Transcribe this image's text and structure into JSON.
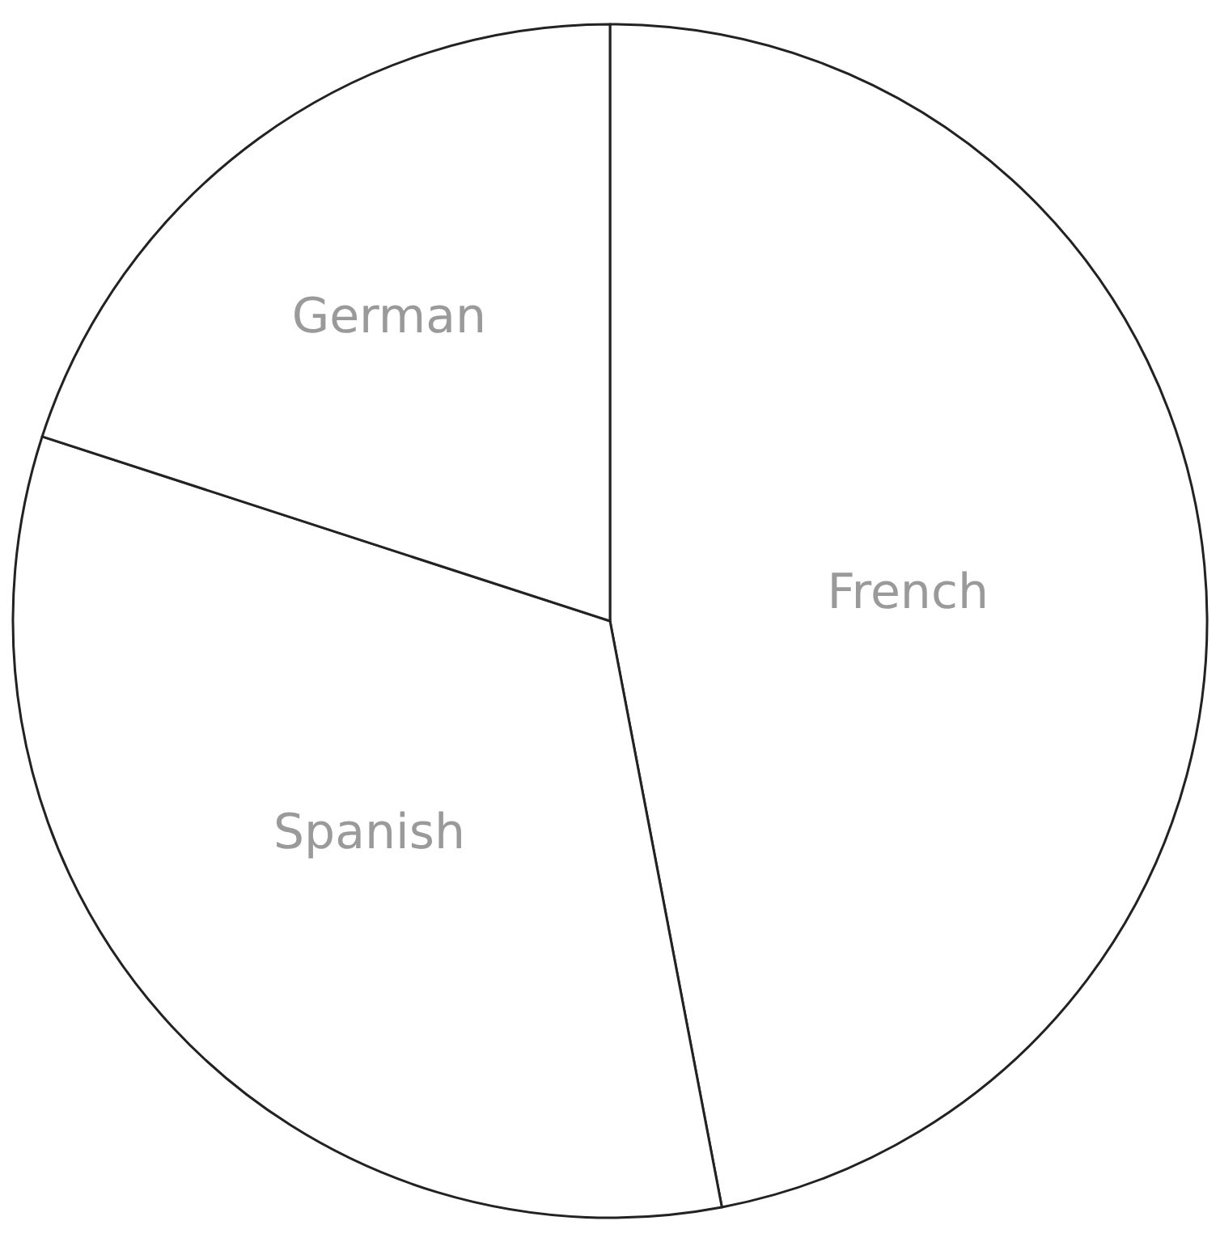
{
  "chart_data": {
    "type": "pie",
    "categories": [
      "French",
      "Spanish",
      "German"
    ],
    "values": [
      47,
      33,
      20
    ],
    "colors": [
      "#ffffff",
      "#ffffff",
      "#ffffff"
    ]
  }
}
